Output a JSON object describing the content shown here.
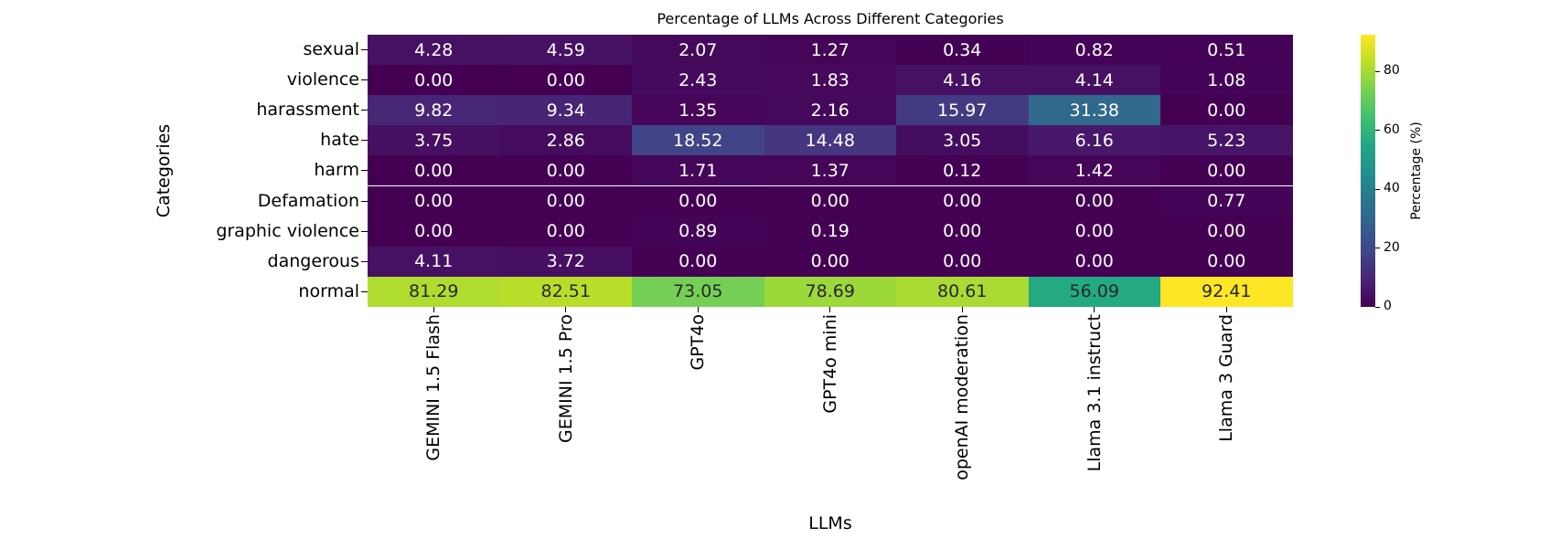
{
  "chart_data": {
    "type": "heatmap",
    "title": "Percentage of LLMs Across Different Categories",
    "xlabel": "LLMs",
    "ylabel": "Categories",
    "x_tick_labels": [
      "GEMINI 1.5 Flash",
      "GEMINI 1.5 Pro",
      "GPT4o",
      "GPT4o mini",
      "openAI moderation",
      "Llama 3.1 instruct",
      "Llama 3 Guard"
    ],
    "y_tick_labels": [
      "sexual",
      "violence",
      "harassment",
      "hate",
      "harm",
      "Defamation",
      "graphic violence",
      "dangerous",
      "normal"
    ],
    "values": [
      [
        4.28,
        4.59,
        2.07,
        1.27,
        0.34,
        0.82,
        0.51
      ],
      [
        0.0,
        0.0,
        2.43,
        1.83,
        4.16,
        4.14,
        1.08
      ],
      [
        9.82,
        9.34,
        1.35,
        2.16,
        15.97,
        31.38,
        0.0
      ],
      [
        3.75,
        2.86,
        18.52,
        14.48,
        3.05,
        6.16,
        5.23
      ],
      [
        0.0,
        0.0,
        1.71,
        1.37,
        0.12,
        1.42,
        0.0
      ],
      [
        0.0,
        0.0,
        0.0,
        0.0,
        0.0,
        0.0,
        0.77
      ],
      [
        0.0,
        0.0,
        0.89,
        0.19,
        0.0,
        0.0,
        0.0
      ],
      [
        4.11,
        3.72,
        0.0,
        0.0,
        0.0,
        0.0,
        0.0
      ],
      [
        81.29,
        82.51,
        73.05,
        78.69,
        80.61,
        56.09,
        92.41
      ]
    ],
    "value_format": "0.00",
    "vmin": 0,
    "vmax": 92.41,
    "colormap": "viridis",
    "viridis_stops": [
      "#440154",
      "#482475",
      "#414487",
      "#355f8d",
      "#2a788e",
      "#21918c",
      "#22a884",
      "#44bf70",
      "#7ad151",
      "#bddf26",
      "#fde725"
    ],
    "annotations": true,
    "grid": false,
    "legend_position": "none",
    "colorbar": {
      "label": "Percentage (%)",
      "ticks": [
        0,
        20,
        40,
        60,
        80
      ],
      "position": "right"
    },
    "colors": {
      "background": "#ffffff",
      "annotation_light": "#ffffff",
      "annotation_dark": "#262626",
      "axis_text": "#000000"
    }
  }
}
